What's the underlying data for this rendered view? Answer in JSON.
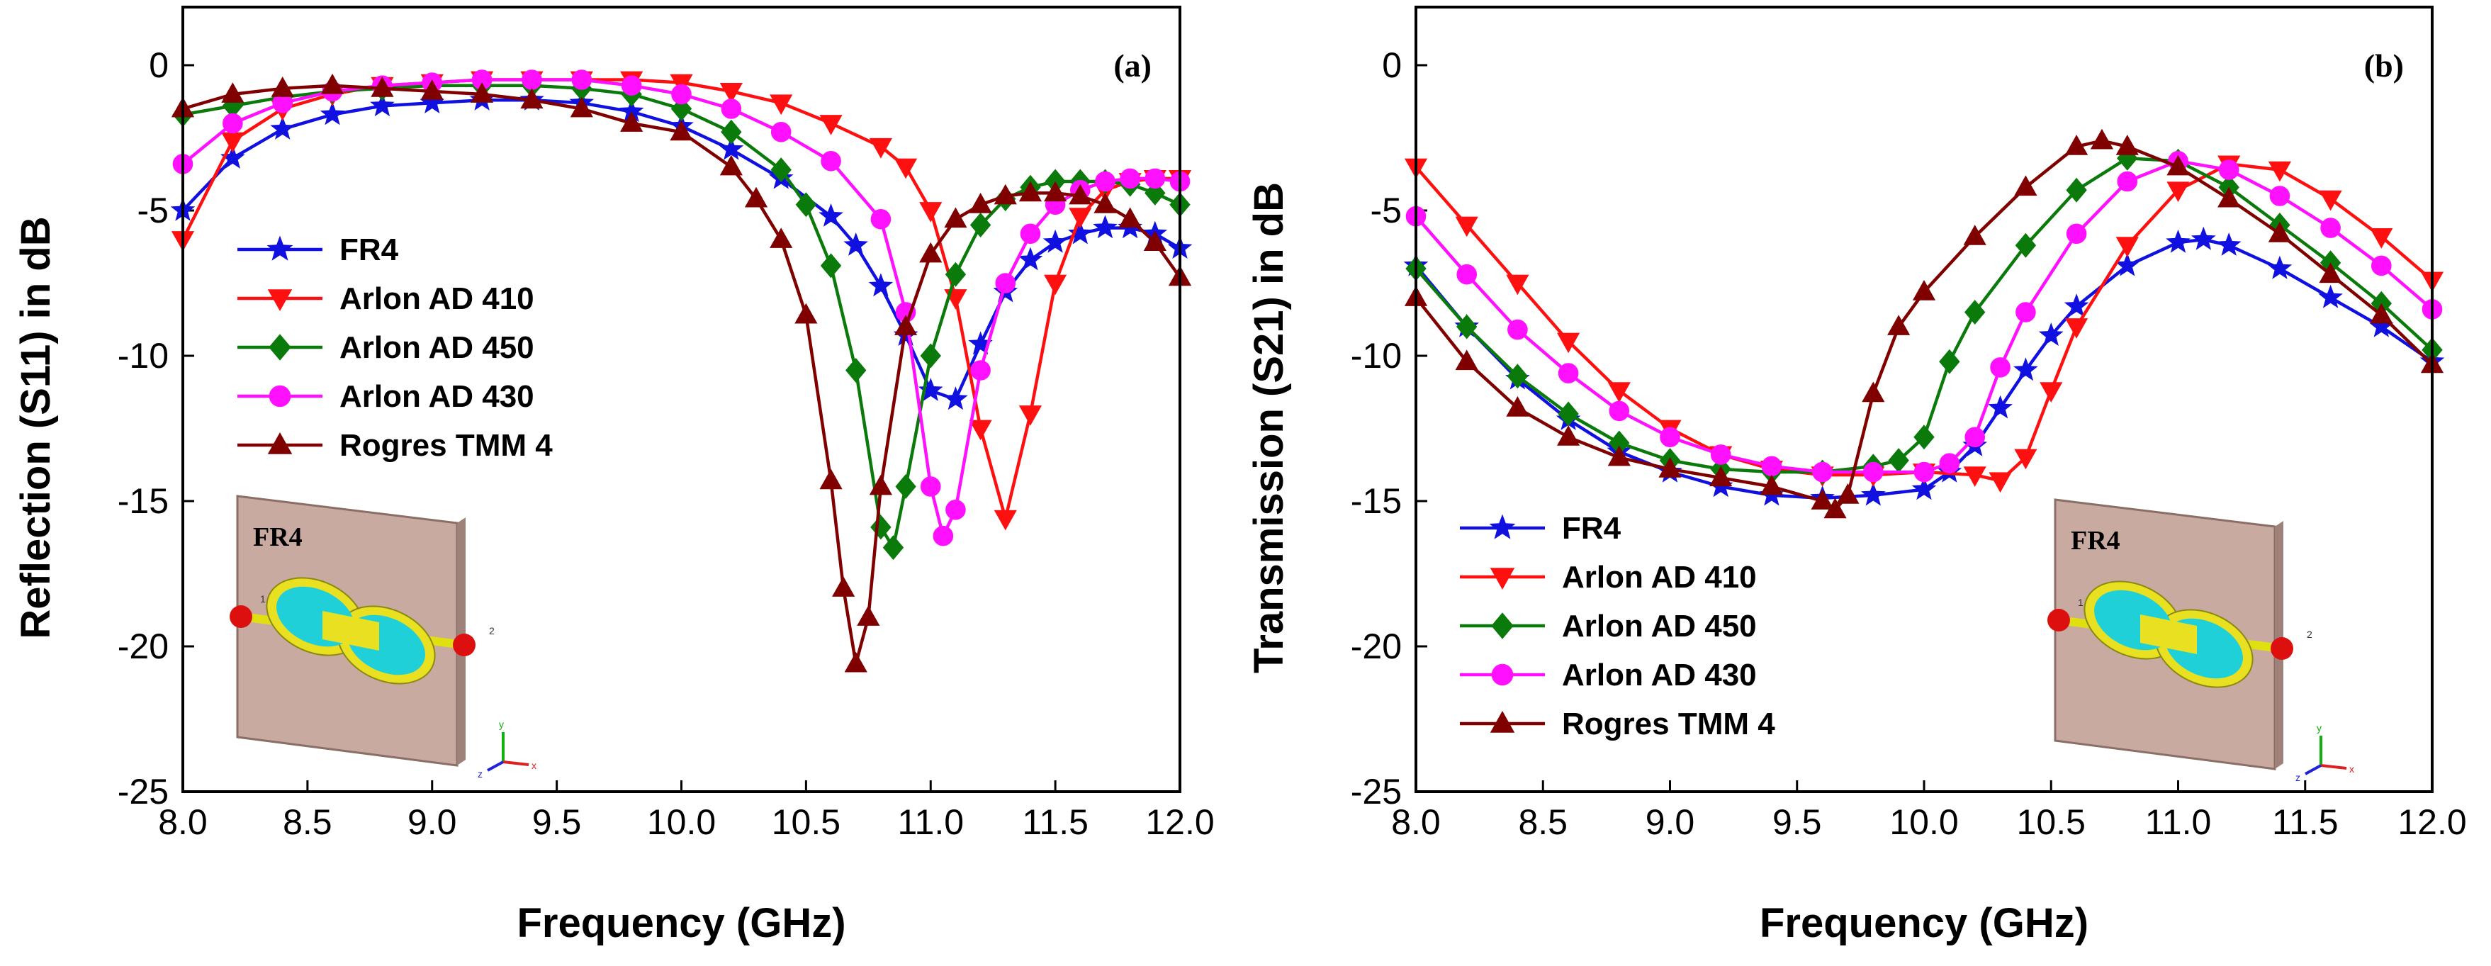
{
  "chart_data": [
    {
      "type": "line",
      "panel_label": "(a)",
      "xlabel": "Frequency (GHz)",
      "ylabel": "Reflection (S11) in dB",
      "xlim": [
        8.0,
        12.0
      ],
      "ylim": [
        -25,
        2
      ],
      "xticks": [
        "8.0",
        "8.5",
        "9.0",
        "9.5",
        "10.0",
        "10.5",
        "11.0",
        "11.5",
        "12.0"
      ],
      "yticks": [
        "0",
        "-5",
        "-10",
        "-15",
        "-20",
        "-25"
      ],
      "legend_position": "center-left",
      "inset": {
        "label": "FR4",
        "port1": "1",
        "port2": "2",
        "axis_y": "y",
        "axis_x": "x",
        "axis_z": "z"
      },
      "series": [
        {
          "name": "FR4",
          "color": "#1010e0",
          "marker": "star",
          "x": [
            8.0,
            8.2,
            8.4,
            8.6,
            8.8,
            9.0,
            9.2,
            9.4,
            9.6,
            9.8,
            10.0,
            10.2,
            10.4,
            10.6,
            10.7,
            10.8,
            10.9,
            11.0,
            11.1,
            11.2,
            11.3,
            11.4,
            11.5,
            11.6,
            11.7,
            11.8,
            11.9,
            12.0
          ],
          "y": [
            -5.0,
            -3.2,
            -2.2,
            -1.7,
            -1.4,
            -1.3,
            -1.2,
            -1.2,
            -1.3,
            -1.6,
            -2.1,
            -2.9,
            -3.9,
            -5.2,
            -6.2,
            -7.6,
            -9.3,
            -11.2,
            -11.5,
            -9.6,
            -7.8,
            -6.7,
            -6.1,
            -5.8,
            -5.6,
            -5.6,
            -5.8,
            -6.3
          ]
        },
        {
          "name": "Arlon AD 410",
          "color": "#ff1010",
          "marker": "triangle-down",
          "x": [
            8.0,
            8.2,
            8.4,
            8.6,
            8.8,
            9.0,
            9.2,
            9.4,
            9.6,
            9.8,
            10.0,
            10.2,
            10.4,
            10.6,
            10.8,
            10.9,
            11.0,
            11.1,
            11.2,
            11.3,
            11.4,
            11.5,
            11.6,
            11.7,
            11.8,
            11.9,
            12.0
          ],
          "y": [
            -6.0,
            -2.6,
            -1.5,
            -1.0,
            -0.7,
            -0.6,
            -0.5,
            -0.5,
            -0.5,
            -0.5,
            -0.6,
            -0.9,
            -1.3,
            -2.0,
            -2.8,
            -3.5,
            -5.0,
            -8.0,
            -12.5,
            -15.6,
            -12.0,
            -7.5,
            -5.2,
            -4.3,
            -4.0,
            -3.9,
            -3.9
          ]
        },
        {
          "name": "Arlon AD 450",
          "color": "#0a7a0a",
          "marker": "diamond",
          "x": [
            8.0,
            8.2,
            8.4,
            8.6,
            8.8,
            9.0,
            9.2,
            9.4,
            9.6,
            9.8,
            10.0,
            10.2,
            10.4,
            10.5,
            10.6,
            10.7,
            10.8,
            10.85,
            10.9,
            11.0,
            11.1,
            11.2,
            11.3,
            11.4,
            11.5,
            11.6,
            11.7,
            11.8,
            11.9,
            12.0
          ],
          "y": [
            -1.7,
            -1.4,
            -1.1,
            -0.9,
            -0.8,
            -0.7,
            -0.7,
            -0.7,
            -0.8,
            -1.0,
            -1.5,
            -2.3,
            -3.6,
            -4.8,
            -6.9,
            -10.5,
            -15.9,
            -16.6,
            -14.5,
            -10.0,
            -7.2,
            -5.5,
            -4.6,
            -4.2,
            -4.0,
            -4.0,
            -4.0,
            -4.1,
            -4.4,
            -4.8
          ]
        },
        {
          "name": "Arlon AD 430",
          "color": "#ff10ff",
          "marker": "circle",
          "x": [
            8.0,
            8.2,
            8.4,
            8.6,
            8.8,
            9.0,
            9.2,
            9.4,
            9.6,
            9.8,
            10.0,
            10.2,
            10.4,
            10.6,
            10.8,
            10.9,
            11.0,
            11.05,
            11.1,
            11.2,
            11.3,
            11.4,
            11.5,
            11.6,
            11.7,
            11.8,
            11.9,
            12.0
          ],
          "y": [
            -3.4,
            -2.0,
            -1.3,
            -0.9,
            -0.7,
            -0.6,
            -0.5,
            -0.5,
            -0.5,
            -0.7,
            -1.0,
            -1.5,
            -2.3,
            -3.3,
            -5.3,
            -8.5,
            -14.5,
            -16.2,
            -15.3,
            -10.5,
            -7.5,
            -5.8,
            -4.8,
            -4.3,
            -4.0,
            -3.9,
            -3.9,
            -4.0
          ]
        },
        {
          "name": "Rogres TMM 4",
          "color": "#800000",
          "marker": "triangle-up",
          "x": [
            8.0,
            8.2,
            8.4,
            8.6,
            8.8,
            9.0,
            9.2,
            9.4,
            9.6,
            9.8,
            10.0,
            10.2,
            10.3,
            10.4,
            10.5,
            10.6,
            10.65,
            10.7,
            10.75,
            10.8,
            10.9,
            11.0,
            11.1,
            11.2,
            11.3,
            11.4,
            11.5,
            11.6,
            11.7,
            11.8,
            11.9,
            12.0
          ],
          "y": [
            -1.5,
            -1.0,
            -0.8,
            -0.7,
            -0.8,
            -0.9,
            -1.0,
            -1.2,
            -1.5,
            -2.0,
            -2.3,
            -3.5,
            -4.6,
            -6.0,
            -8.6,
            -14.3,
            -18.0,
            -20.6,
            -19.0,
            -14.5,
            -9.0,
            -6.5,
            -5.3,
            -4.8,
            -4.5,
            -4.4,
            -4.4,
            -4.5,
            -4.8,
            -5.3,
            -6.1,
            -7.3
          ]
        }
      ]
    },
    {
      "type": "line",
      "panel_label": "(b)",
      "xlabel": "Frequency (GHz)",
      "ylabel": "Transmission (S21) in dB",
      "xlim": [
        8.0,
        12.0
      ],
      "ylim": [
        -25,
        2
      ],
      "xticks": [
        "8.0",
        "8.5",
        "9.0",
        "9.5",
        "10.0",
        "10.5",
        "11.0",
        "11.5",
        "12.0"
      ],
      "yticks": [
        "0",
        "-5",
        "-10",
        "-15",
        "-20",
        "-25"
      ],
      "legend_position": "bottom-left",
      "inset": {
        "label": "FR4",
        "port1": "1",
        "port2": "2",
        "axis_y": "y",
        "axis_x": "x",
        "axis_z": "z"
      },
      "series": [
        {
          "name": "FR4",
          "color": "#1010e0",
          "marker": "star",
          "x": [
            8.0,
            8.2,
            8.4,
            8.6,
            8.8,
            9.0,
            9.2,
            9.4,
            9.6,
            9.8,
            10.0,
            10.1,
            10.2,
            10.3,
            10.4,
            10.5,
            10.6,
            10.8,
            11.0,
            11.1,
            11.2,
            11.4,
            11.6,
            11.8,
            12.0
          ],
          "y": [
            -6.9,
            -9.0,
            -10.8,
            -12.2,
            -13.3,
            -14.0,
            -14.5,
            -14.8,
            -14.9,
            -14.8,
            -14.6,
            -14.0,
            -13.1,
            -11.8,
            -10.5,
            -9.3,
            -8.3,
            -6.9,
            -6.1,
            -6.0,
            -6.2,
            -7.0,
            -8.0,
            -9.0,
            -10.2
          ]
        },
        {
          "name": "Arlon AD 410",
          "color": "#ff1010",
          "marker": "triangle-down",
          "x": [
            8.0,
            8.2,
            8.4,
            8.6,
            8.8,
            9.0,
            9.2,
            9.4,
            9.6,
            9.8,
            10.0,
            10.2,
            10.3,
            10.4,
            10.5,
            10.6,
            10.8,
            11.0,
            11.2,
            11.4,
            11.6,
            11.8,
            12.0
          ],
          "y": [
            -3.5,
            -5.5,
            -7.5,
            -9.5,
            -11.2,
            -12.5,
            -13.4,
            -13.9,
            -14.1,
            -14.1,
            -14.0,
            -14.1,
            -14.3,
            -13.5,
            -11.2,
            -9.0,
            -6.2,
            -4.3,
            -3.4,
            -3.6,
            -4.6,
            -5.9,
            -7.4
          ]
        },
        {
          "name": "Arlon AD 450",
          "color": "#0a7a0a",
          "marker": "diamond",
          "x": [
            8.0,
            8.2,
            8.4,
            8.6,
            8.8,
            9.0,
            9.2,
            9.4,
            9.6,
            9.8,
            9.9,
            10.0,
            10.1,
            10.2,
            10.4,
            10.6,
            10.8,
            11.0,
            11.2,
            11.4,
            11.6,
            11.8,
            12.0
          ],
          "y": [
            -7.0,
            -9.0,
            -10.7,
            -12.0,
            -13.0,
            -13.6,
            -13.9,
            -14.0,
            -14.0,
            -13.8,
            -13.6,
            -12.8,
            -10.2,
            -8.5,
            -6.2,
            -4.3,
            -3.2,
            -3.3,
            -4.2,
            -5.5,
            -6.8,
            -8.2,
            -9.8
          ]
        },
        {
          "name": "Arlon AD 430",
          "color": "#ff10ff",
          "marker": "circle",
          "x": [
            8.0,
            8.2,
            8.4,
            8.6,
            8.8,
            9.0,
            9.2,
            9.4,
            9.6,
            9.8,
            10.0,
            10.1,
            10.2,
            10.3,
            10.4,
            10.6,
            10.8,
            11.0,
            11.2,
            11.4,
            11.6,
            11.8,
            12.0
          ],
          "y": [
            -5.2,
            -7.2,
            -9.1,
            -10.6,
            -11.9,
            -12.8,
            -13.4,
            -13.8,
            -14.0,
            -14.0,
            -14.0,
            -13.7,
            -12.8,
            -10.4,
            -8.5,
            -5.8,
            -4.0,
            -3.3,
            -3.6,
            -4.5,
            -5.6,
            -6.9,
            -8.4
          ]
        },
        {
          "name": "Rogres TMM 4",
          "color": "#800000",
          "marker": "triangle-up",
          "x": [
            8.0,
            8.2,
            8.4,
            8.6,
            8.8,
            9.0,
            9.2,
            9.4,
            9.6,
            9.65,
            9.7,
            9.8,
            9.9,
            10.0,
            10.2,
            10.4,
            10.6,
            10.7,
            10.8,
            11.0,
            11.2,
            11.4,
            11.6,
            11.8,
            12.0
          ],
          "y": [
            -8.0,
            -10.2,
            -11.8,
            -12.8,
            -13.5,
            -13.9,
            -14.2,
            -14.5,
            -15.0,
            -15.3,
            -14.8,
            -11.3,
            -9.0,
            -7.8,
            -5.9,
            -4.2,
            -2.8,
            -2.6,
            -2.8,
            -3.5,
            -4.6,
            -5.8,
            -7.2,
            -8.6,
            -10.3
          ]
        }
      ]
    }
  ]
}
